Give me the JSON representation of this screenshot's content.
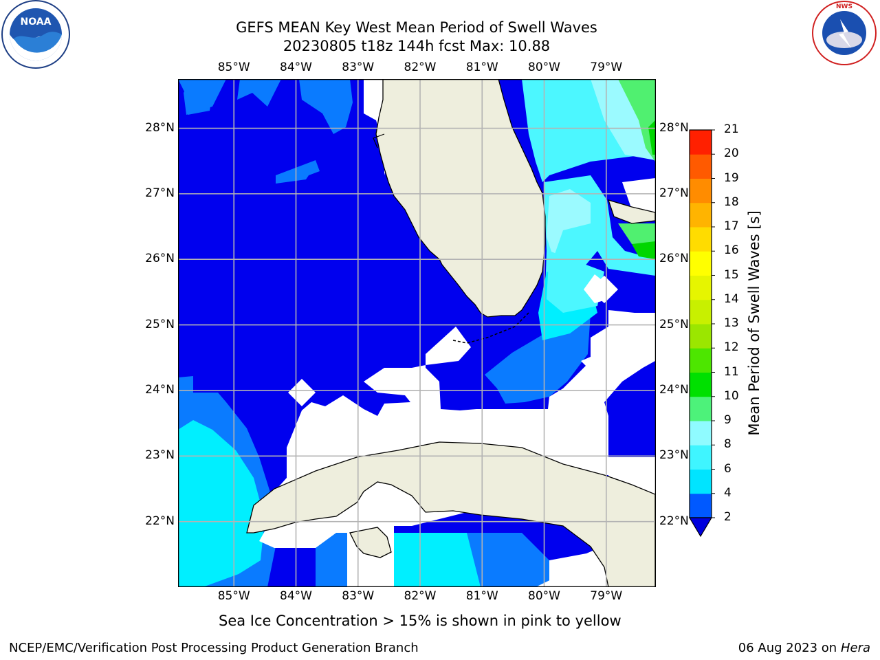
{
  "title": {
    "line1": "GEFS MEAN Key West Mean Period of Swell Waves",
    "line2": "20230805 t18z 144h fcst   Max: 10.88"
  },
  "logos": {
    "left": "NOAA",
    "right": "NATIONAL WEATHER SERVICE"
  },
  "map": {
    "lon_min": -85.9,
    "lon_max": -78.2,
    "lat_min": 21.0,
    "lat_max": 28.75,
    "lon_ticks": [
      "85°W",
      "84°W",
      "83°W",
      "82°W",
      "81°W",
      "80°W",
      "79°W"
    ],
    "lat_ticks": [
      "28°N",
      "27°N",
      "26°N",
      "25°N",
      "24°N",
      "23°N",
      "22°N"
    ],
    "colors": {
      "land": "#eeeedd",
      "blue_2_4": "#0000ee",
      "blue_4": "#0a7bff",
      "cyan_4_6": "#00efff",
      "cyan_6_8": "#4cf7ff",
      "cyan_8_9": "#9bfaff",
      "green_9_10": "#50f070",
      "green_10_11": "#00d600",
      "grid": "#b3b3b3"
    }
  },
  "colorbar": {
    "label": "Mean Period of Swell Waves [s]",
    "ticks": [
      "2",
      "4",
      "6",
      "8",
      "9",
      "10",
      "11",
      "12",
      "13",
      "14",
      "15",
      "16",
      "17",
      "18",
      "19",
      "20",
      "21"
    ],
    "colors": [
      "#0059ff",
      "#00e4ff",
      "#3ff5ff",
      "#8ffbff",
      "#4df27a",
      "#00e000",
      "#4de600",
      "#9be600",
      "#c8f000",
      "#e6f500",
      "#ffff00",
      "#ffdc00",
      "#ffb400",
      "#ff8c00",
      "#ff5a00",
      "#ff2000"
    ],
    "under_color": "#0000dd"
  },
  "chart_data": {
    "type": "heatmap",
    "title": "GEFS MEAN Key West Mean Period of Swell Waves",
    "subtitle": "20230805 t18z 144h fcst   Max: 10.88",
    "max": 10.88,
    "units": "s",
    "xlim": [
      -85.9,
      -78.2
    ],
    "ylim": [
      21.0,
      28.75
    ],
    "colorbar_range": [
      2,
      21
    ]
  },
  "ice_note": "Sea Ice Concentration > 15% is shown in pink to yellow",
  "footer": {
    "left": "NCEP/EMC/Verification Post Processing Product Generation Branch",
    "right_date": "06 Aug 2023 on",
    "right_host": "Hera"
  }
}
